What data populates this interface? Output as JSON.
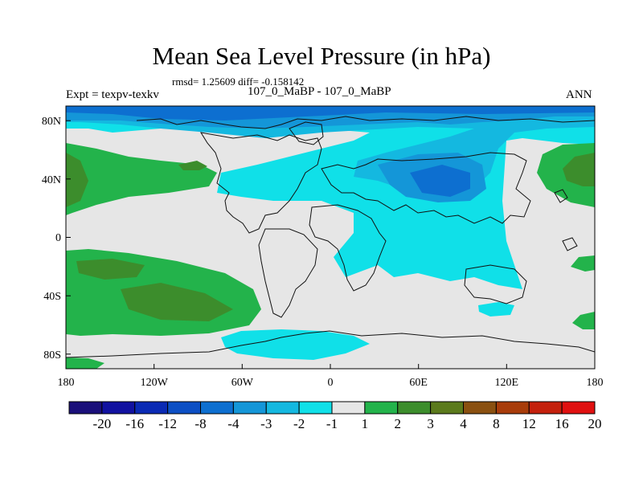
{
  "title": "Mean Sea Level Pressure (in hPa)",
  "stats": "rmsd= 1.25609 diff= -0.158142",
  "experiment": "Expt = texpv-texkv",
  "runs": "107_0_MaBP - 107_0_MaBP",
  "season": "ANN",
  "axes": {
    "x_ticks": [
      "180",
      "120W",
      "60W",
      "0",
      "60E",
      "120E",
      "180"
    ],
    "x_values": [
      -180,
      -120,
      -60,
      0,
      60,
      120,
      180
    ],
    "y_ticks": [
      "80N",
      "40N",
      "0",
      "40S",
      "80S"
    ],
    "y_values": [
      80,
      40,
      0,
      -40,
      -80
    ],
    "lon_range": [
      -180,
      180
    ],
    "lat_range": [
      -90,
      90
    ]
  },
  "colorbar": {
    "labels": [
      "-20",
      "-16",
      "-12",
      "-8",
      "-4",
      "-3",
      "-2",
      "-1",
      "1",
      "2",
      "3",
      "4",
      "8",
      "12",
      "16",
      "20"
    ],
    "colors": [
      "#1a0f7a",
      "#1111a0",
      "#0a2ab4",
      "#0c4fc4",
      "#0d6fd0",
      "#1496d8",
      "#14b8e0",
      "#10e0e8",
      "#e6e6e6",
      "#23b34b",
      "#3c8d2c",
      "#5b7a1c",
      "#8a5010",
      "#a83c0a",
      "#c4200c",
      "#e01010"
    ]
  },
  "chart_data": {
    "type": "map",
    "variable": "Mean Sea Level Pressure",
    "units": "hPa",
    "levels": [
      -20,
      -16,
      -12,
      -8,
      -4,
      -3,
      -2,
      -1,
      1,
      2,
      3,
      4,
      8,
      12,
      16,
      20
    ],
    "regions": [
      {
        "lon": -170,
        "lat": 37,
        "range": "1 to 2"
      },
      {
        "lon": -130,
        "lat": 44,
        "range": "2 to 3"
      },
      {
        "lon": -145,
        "lat": -30,
        "range": "1 to 2"
      },
      {
        "lon": -125,
        "lat": -55,
        "range": "2 to 3"
      },
      {
        "lon": 170,
        "lat": 46,
        "range": "2 to 3"
      },
      {
        "lon": 165,
        "lat": -55,
        "range": "1 to 2"
      },
      {
        "lon": -60,
        "lat": 80,
        "range": "-3 to -2"
      },
      {
        "lon": 80,
        "lat": 45,
        "range": "-3 to -2"
      },
      {
        "lon": 60,
        "lat": 20,
        "range": "-1 to -2"
      },
      {
        "lon": 0,
        "lat": -75,
        "range": "-1 to -2"
      }
    ]
  }
}
